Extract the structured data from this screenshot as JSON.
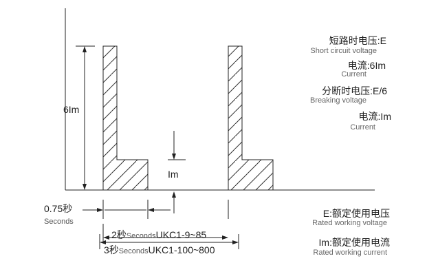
{
  "labels": {
    "short_circuit_voltage_cn": "短路时电压:E",
    "short_circuit_voltage_en": "Short circuit voltage",
    "current_6im_cn": "电流:6Im",
    "current_6im_en": "Current",
    "breaking_voltage_cn": "分断时电压:E/6",
    "breaking_voltage_en": "Breaking voltage",
    "current_im_cn": "电流:Im",
    "current_im_en": "Current",
    "rated_voltage_cn": "E:额定使用电压",
    "rated_voltage_en": "Rated working voltage",
    "rated_current_cn": "Im:额定使用电流",
    "rated_current_en": "Rated working current"
  },
  "dimensions": {
    "six_im": "6Im",
    "im": "Im",
    "t075_value": "0.75秒",
    "t075_unit": "Seconds",
    "t2_value": "2秒",
    "t2_unit": "Seconds",
    "t2_model": "UKC1-9~85",
    "t3_value": "3秒",
    "t3_unit": "Seconds",
    "t3_model": "UKC1-100~800"
  },
  "colors": {
    "stroke": "#222222",
    "hatch": "#333333",
    "secondary_text": "#666666"
  }
}
